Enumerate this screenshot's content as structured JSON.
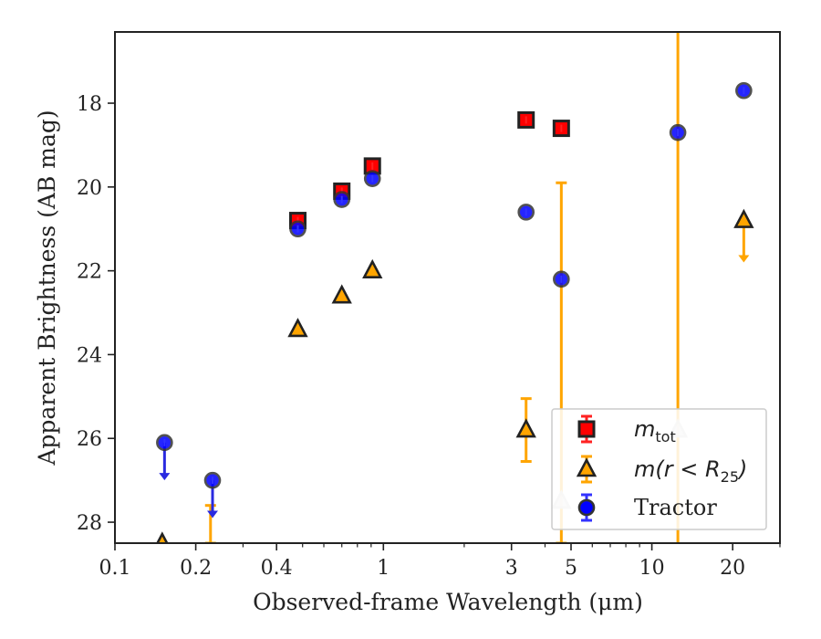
{
  "chart_data": {
    "type": "scatter",
    "xlabel": "Observed-frame Wavelength (μm)",
    "ylabel": "Apparent Brightness (AB mag)",
    "xscale": "log",
    "xlim": [
      0.1,
      30
    ],
    "ylim": [
      28.5,
      16.3
    ],
    "y_inverted": true,
    "grid": false,
    "legend_placement": "lower-right",
    "xticks": [
      {
        "value": 0.1,
        "label": "0.1"
      },
      {
        "value": 0.2,
        "label": "0.2"
      },
      {
        "value": 0.4,
        "label": "0.4"
      },
      {
        "value": 1,
        "label": "1"
      },
      {
        "value": 3,
        "label": "3"
      },
      {
        "value": 5,
        "label": "5"
      },
      {
        "value": 10,
        "label": "10"
      },
      {
        "value": 20,
        "label": "20"
      }
    ],
    "yticks": [
      {
        "value": 18,
        "label": "18"
      },
      {
        "value": 20,
        "label": "20"
      },
      {
        "value": 22,
        "label": "22"
      },
      {
        "value": 24,
        "label": "24"
      },
      {
        "value": 26,
        "label": "26"
      },
      {
        "value": 28,
        "label": "28"
      }
    ],
    "series": [
      {
        "name_main": "m",
        "name_sub": "tot",
        "marker": "square",
        "color": "#ff0000",
        "edge": "#222222",
        "points": [
          {
            "x": 0.48,
            "y": 20.8
          },
          {
            "x": 0.7,
            "y": 20.1
          },
          {
            "x": 0.91,
            "y": 19.5
          },
          {
            "x": 3.4,
            "y": 18.4
          },
          {
            "x": 4.6,
            "y": 18.6
          }
        ]
      },
      {
        "name_main": "m(r < R",
        "name_sub": "25",
        "name_tail": ")",
        "marker": "triangle",
        "color": "#ffa500",
        "edge": "#222222",
        "points": [
          {
            "x": 0.15,
            "y": 28.5
          },
          {
            "x": 0.48,
            "y": 23.4
          },
          {
            "x": 0.7,
            "y": 22.6
          },
          {
            "x": 0.91,
            "y": 22.0
          },
          {
            "x": 3.4,
            "y": 25.8,
            "err": [
              25.05,
              26.55
            ]
          },
          {
            "x": 4.6,
            "y": 27.5,
            "err": [
              19.9,
              28.5
            ],
            "faded": true
          },
          {
            "x": 12.5,
            "y": 25.8,
            "err": [
              16.3,
              28.5
            ],
            "faded": true
          },
          {
            "x": 22,
            "y": 20.8,
            "limit_to": 21.8
          },
          {
            "x": 0.227,
            "y": 28.5,
            "err": [
              27.6,
              28.5
            ],
            "bar_only": true
          }
        ]
      },
      {
        "name_main": "Tractor",
        "marker": "circle",
        "color": "#0000ff",
        "edge": "#333333",
        "points": [
          {
            "x": 0.153,
            "y": 26.1,
            "limit_to": 27.0
          },
          {
            "x": 0.231,
            "y": 27.0,
            "limit_to": 27.9
          },
          {
            "x": 0.48,
            "y": 21.0
          },
          {
            "x": 0.7,
            "y": 20.3
          },
          {
            "x": 0.91,
            "y": 19.8
          },
          {
            "x": 3.4,
            "y": 20.6
          },
          {
            "x": 4.6,
            "y": 22.2
          },
          {
            "x": 12.5,
            "y": 18.7
          },
          {
            "x": 22,
            "y": 17.7
          }
        ]
      }
    ]
  }
}
